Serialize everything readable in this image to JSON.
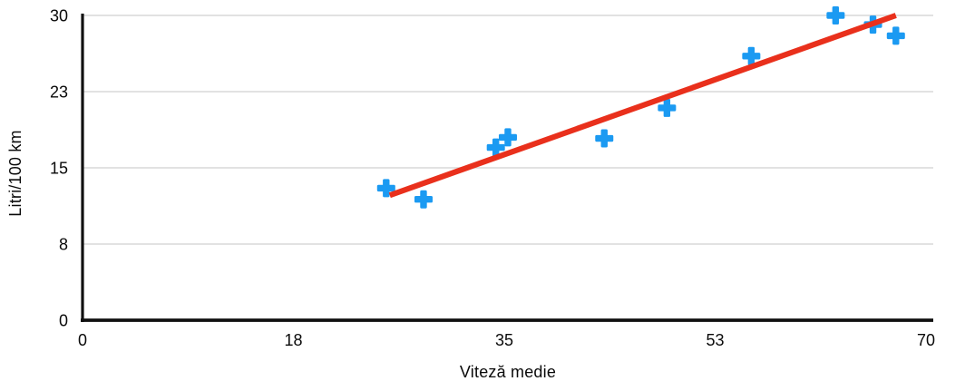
{
  "chart_data": {
    "type": "scatter",
    "title": "",
    "xlabel": "Viteză medie",
    "ylabel": "Litri/100 km",
    "xlim": [
      0,
      70
    ],
    "ylim": [
      0,
      30
    ],
    "grid": "horizontal-only",
    "legend_position": "none",
    "x_ticks": [
      {
        "value": 0,
        "label": "0"
      },
      {
        "value": 17.5,
        "label": "18"
      },
      {
        "value": 35,
        "label": "35"
      },
      {
        "value": 52.5,
        "label": "53"
      },
      {
        "value": 70,
        "label": "70"
      }
    ],
    "y_ticks": [
      {
        "value": 0,
        "label": "0"
      },
      {
        "value": 7.5,
        "label": "8"
      },
      {
        "value": 15,
        "label": "15"
      },
      {
        "value": 22.5,
        "label": "23"
      },
      {
        "value": 30,
        "label": "30"
      }
    ],
    "series": [
      {
        "name": "Litri/100 km",
        "marker": "plus",
        "color": "#1b9af2",
        "points": [
          {
            "x": 25.2,
            "y": 13.0
          },
          {
            "x": 28.3,
            "y": 11.9
          },
          {
            "x": 34.3,
            "y": 17.0
          },
          {
            "x": 35.3,
            "y": 18.0
          },
          {
            "x": 43.3,
            "y": 17.9
          },
          {
            "x": 48.5,
            "y": 20.9
          },
          {
            "x": 55.5,
            "y": 26.0
          },
          {
            "x": 62.5,
            "y": 30.0
          },
          {
            "x": 65.6,
            "y": 29.1
          },
          {
            "x": 67.5,
            "y": 28.0
          }
        ]
      }
    ],
    "trendline": {
      "type": "linear",
      "color": "#e9301c",
      "x1": 25.5,
      "y1": 12.3,
      "x2": 67.5,
      "y2": 30.0
    }
  },
  "colors": {
    "marker": "#1b9af2",
    "trendline": "#e9301c",
    "gridline": "#d9d9d9",
    "axis": "#111111",
    "text": "#0a0a0a",
    "background": "#ffffff"
  }
}
